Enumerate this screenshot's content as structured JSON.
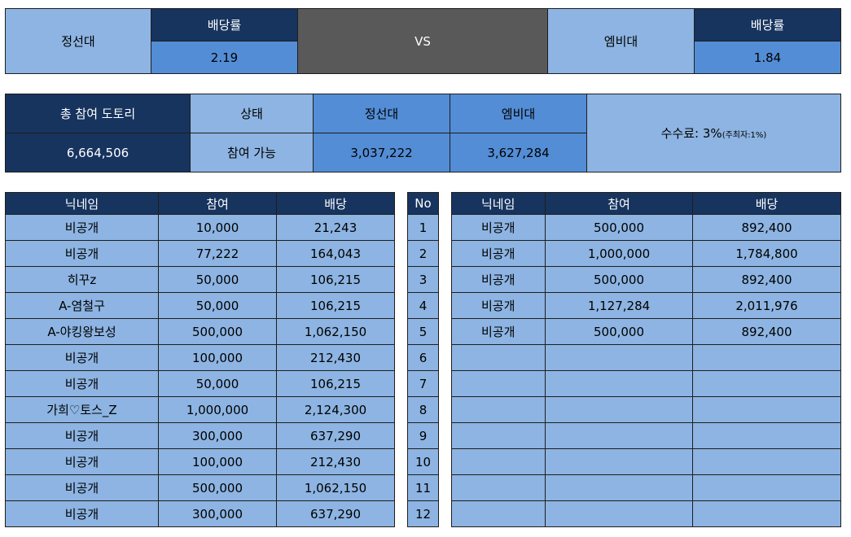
{
  "match": {
    "team_a": "정선대",
    "team_b": "엠비대",
    "odds_label": "배당률",
    "odds_a": "2.19",
    "odds_b": "1.84",
    "vs": "VS"
  },
  "stats": {
    "total_label": "총 참여 도토리",
    "total_value": "6,664,506",
    "status_label": "상태",
    "status_value": "참여 가능",
    "team_a_label": "정선대",
    "team_a_value": "3,037,222",
    "team_b_label": "엠비대",
    "team_b_value": "3,627,284",
    "fee_text": "수수료: 3%",
    "fee_note": "(주최자:1%)"
  },
  "columns": {
    "nickname": "닉네임",
    "bet": "참여",
    "payout": "배당",
    "no": "No"
  },
  "left_rows": [
    {
      "nickname": "비공개",
      "bet": "10,000",
      "payout": "21,243"
    },
    {
      "nickname": "비공개",
      "bet": "77,222",
      "payout": "164,043"
    },
    {
      "nickname": "히꾸z",
      "bet": "50,000",
      "payout": "106,215"
    },
    {
      "nickname": "A-염철구",
      "bet": "50,000",
      "payout": "106,215"
    },
    {
      "nickname": "A-야킹왕보성",
      "bet": "500,000",
      "payout": "1,062,150"
    },
    {
      "nickname": "비공개",
      "bet": "100,000",
      "payout": "212,430"
    },
    {
      "nickname": "비공개",
      "bet": "50,000",
      "payout": "106,215"
    },
    {
      "nickname": "가희♡토스_Z",
      "bet": "1,000,000",
      "payout": "2,124,300"
    },
    {
      "nickname": "비공개",
      "bet": "300,000",
      "payout": "637,290"
    },
    {
      "nickname": "비공개",
      "bet": "100,000",
      "payout": "212,430"
    },
    {
      "nickname": "비공개",
      "bet": "500,000",
      "payout": "1,062,150"
    },
    {
      "nickname": "비공개",
      "bet": "300,000",
      "payout": "637,290"
    }
  ],
  "numbers": [
    "1",
    "2",
    "3",
    "4",
    "5",
    "6",
    "7",
    "8",
    "9",
    "10",
    "11",
    "12"
  ],
  "right_rows": [
    {
      "nickname": "비공개",
      "bet": "500,000",
      "payout": "892,400"
    },
    {
      "nickname": "비공개",
      "bet": "1,000,000",
      "payout": "1,784,800"
    },
    {
      "nickname": "비공개",
      "bet": "500,000",
      "payout": "892,400"
    },
    {
      "nickname": "비공개",
      "bet": "1,127,284",
      "payout": "2,011,976"
    },
    {
      "nickname": "비공개",
      "bet": "500,000",
      "payout": "892,400"
    },
    {
      "nickname": "",
      "bet": "",
      "payout": ""
    },
    {
      "nickname": "",
      "bet": "",
      "payout": ""
    },
    {
      "nickname": "",
      "bet": "",
      "payout": ""
    },
    {
      "nickname": "",
      "bet": "",
      "payout": ""
    },
    {
      "nickname": "",
      "bet": "",
      "payout": ""
    },
    {
      "nickname": "",
      "bet": "",
      "payout": ""
    },
    {
      "nickname": "",
      "bet": "",
      "payout": ""
    }
  ]
}
